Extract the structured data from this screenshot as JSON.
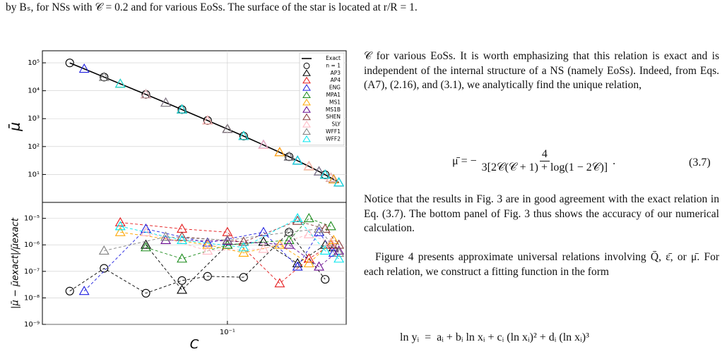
{
  "header": {
    "caption_tail": "by Bₛ, for NSs with 𝒞 = 0.2 and for various EoSs. The surface of the star is located at r/R = 1."
  },
  "chart_data": [
    {
      "type": "scatter",
      "ylabel": "μ̄",
      "xscale": "log",
      "yscale": "log",
      "grid": true,
      "legend": "upper right",
      "xlim": [
        0.0125,
        0.38
      ],
      "ylim": [
        1,
        270000
      ],
      "yticks": [
        {
          "value": 10,
          "label": "10¹"
        },
        {
          "value": 100,
          "label": "10²"
        },
        {
          "value": 1000,
          "label": "10³"
        },
        {
          "value": 10000,
          "label": "10⁴"
        },
        {
          "value": 100000,
          "label": "10⁵"
        }
      ],
      "series": [
        {
          "name": "Exact",
          "color": "#000000",
          "line": "solid",
          "x": [
            0.017,
            0.02,
            0.025,
            0.03,
            0.04,
            0.05,
            0.06,
            0.08,
            0.1,
            0.12,
            0.15,
            0.18,
            0.2,
            0.22,
            0.25,
            0.28,
            0.3,
            0.32,
            0.33,
            0.35
          ],
          "values": [
            99200,
            60700,
            30800,
            17700,
            7370,
            3720,
            2120,
            860,
            424,
            237,
            114,
            62.1,
            43.2,
            31.0,
            19.6,
            12.8,
            9.78,
            7.54,
            6.63,
            5.15
          ]
        },
        {
          "name": "n = 1",
          "color": "#000000",
          "marker": "o",
          "x": [
            0.017,
            0.025,
            0.04,
            0.06,
            0.08,
            0.12,
            0.2,
            0.3
          ],
          "values": [
            99200,
            30800,
            7370,
            2120,
            860,
            237,
            43.2,
            9.78
          ]
        },
        {
          "name": "AP3",
          "color": "#000000",
          "marker": "^",
          "x": [
            0.04,
            0.06,
            0.1,
            0.15,
            0.22,
            0.3,
            0.33
          ],
          "values": [
            7370,
            2120,
            424,
            114,
            31.0,
            9.78,
            6.63
          ]
        },
        {
          "name": "AP4",
          "color": "#e41a1c",
          "marker": "^",
          "x": [
            0.03,
            0.06,
            0.1,
            0.18,
            0.25,
            0.32
          ],
          "values": [
            17700,
            2120,
            424,
            62.1,
            19.6,
            7.54
          ]
        },
        {
          "name": "ENG",
          "color": "#1f1fe0",
          "marker": "^",
          "x": [
            0.02,
            0.04,
            0.08,
            0.15,
            0.22,
            0.28,
            0.33
          ],
          "values": [
            60700,
            7370,
            860,
            114,
            31.0,
            12.8,
            6.63
          ]
        },
        {
          "name": "MPA1",
          "color": "#1a8a1a",
          "marker": "^",
          "x": [
            0.04,
            0.06,
            0.1,
            0.2,
            0.25,
            0.32
          ],
          "values": [
            7370,
            2120,
            424,
            43.2,
            19.6,
            7.54
          ]
        },
        {
          "name": "MS1",
          "color": "#ffa500",
          "marker": "^",
          "x": [
            0.03,
            0.08,
            0.12,
            0.18,
            0.25,
            0.33
          ],
          "values": [
            17700,
            860,
            237,
            62.1,
            19.6,
            6.63
          ]
        },
        {
          "name": "MS1B",
          "color": "#6a0d91",
          "marker": "^",
          "x": [
            0.05,
            0.1,
            0.2,
            0.28,
            0.35
          ],
          "values": [
            3720,
            424,
            43.2,
            12.8,
            5.15
          ]
        },
        {
          "name": "SHEN",
          "color": "#8b3a3a",
          "marker": "^",
          "x": [
            0.06,
            0.12,
            0.22,
            0.3,
            0.35
          ],
          "values": [
            2120,
            237,
            31.0,
            9.78,
            5.15
          ]
        },
        {
          "name": "SLY",
          "color": "#ffb6c1",
          "marker": "^",
          "x": [
            0.04,
            0.08,
            0.15,
            0.25,
            0.32
          ],
          "values": [
            7370,
            860,
            114,
            19.6,
            7.54
          ]
        },
        {
          "name": "WFF1",
          "color": "#808080",
          "marker": "^",
          "x": [
            0.025,
            0.05,
            0.1,
            0.2,
            0.28,
            0.35
          ],
          "values": [
            30800,
            3720,
            424,
            43.2,
            12.8,
            5.15
          ]
        },
        {
          "name": "WFF2",
          "color": "#00e5ee",
          "marker": "^",
          "x": [
            0.03,
            0.06,
            0.12,
            0.22,
            0.3,
            0.35
          ],
          "values": [
            17700,
            2120,
            237,
            31.0,
            9.78,
            5.15
          ]
        }
      ]
    },
    {
      "type": "scatter",
      "ylabel": "|μ̄ − μ̄exact|/μ̄exact",
      "xlabel": "C",
      "xscale": "log",
      "yscale": "log",
      "grid": true,
      "xlim": [
        0.0125,
        0.38
      ],
      "ylim": [
        1e-09,
        4e-05
      ],
      "xticks": [
        {
          "value": 0.1,
          "label": "10⁻¹"
        }
      ],
      "yticks": [
        {
          "value": 1e-09,
          "label": "10⁻⁹"
        },
        {
          "value": 1e-08,
          "label": "10⁻⁸"
        },
        {
          "value": 1e-07,
          "label": "10⁻⁷"
        },
        {
          "value": 1e-06,
          "label": "10⁻⁶"
        },
        {
          "value": 1e-05,
          "label": "10⁻⁵"
        }
      ],
      "series": [
        {
          "color": "#000000",
          "marker": "o",
          "line": "dashed",
          "x": [
            0.017,
            0.025,
            0.04,
            0.06,
            0.08,
            0.12,
            0.2,
            0.3
          ],
          "values": [
            1.8e-08,
            1.3e-07,
            1.5e-08,
            4.5e-08,
            6.5e-08,
            6e-08,
            3e-06,
            5e-08
          ]
        },
        {
          "color": "#000000",
          "marker": "^",
          "line": "dashed",
          "x": [
            0.04,
            0.06,
            0.1,
            0.15,
            0.22,
            0.3,
            0.33
          ],
          "values": [
            1e-06,
            2e-08,
            1e-06,
            1.3e-06,
            2e-07,
            1e-06,
            8e-07
          ]
        },
        {
          "color": "#e41a1c",
          "marker": "^",
          "line": "dashed",
          "x": [
            0.03,
            0.06,
            0.1,
            0.18,
            0.25,
            0.32
          ],
          "values": [
            7e-06,
            4e-06,
            3e-06,
            3.5e-08,
            3e-07,
            1e-06
          ]
        },
        {
          "color": "#1f1fe0",
          "marker": "^",
          "line": "dashed",
          "x": [
            0.02,
            0.04,
            0.08,
            0.15,
            0.22,
            0.28,
            0.33
          ],
          "values": [
            1.8e-08,
            4e-06,
            1.2e-06,
            3e-06,
            1.5e-07,
            3e-06,
            5e-07
          ]
        },
        {
          "color": "#1a8a1a",
          "marker": "^",
          "line": "dashed",
          "x": [
            0.04,
            0.06,
            0.1,
            0.2,
            0.25,
            0.32
          ],
          "values": [
            8e-07,
            3e-07,
            1e-06,
            1.5e-06,
            1e-05,
            5e-06
          ]
        },
        {
          "color": "#ffa500",
          "marker": "^",
          "line": "dashed",
          "x": [
            0.03,
            0.08,
            0.12,
            0.18,
            0.25,
            0.33
          ],
          "values": [
            3e-06,
            1e-06,
            5e-07,
            1e-06,
            2e-07,
            1.5e-06
          ]
        },
        {
          "color": "#6a0d91",
          "marker": "^",
          "line": "dashed",
          "x": [
            0.05,
            0.1,
            0.2,
            0.28,
            0.35
          ],
          "values": [
            1.5e-06,
            1.4e-06,
            1e-06,
            1.5e-07,
            6e-07
          ]
        },
        {
          "color": "#8b3a3a",
          "marker": "^",
          "line": "dashed",
          "x": [
            0.06,
            0.12,
            0.22,
            0.3,
            0.35
          ],
          "values": [
            2e-06,
            1.3e-06,
            8e-06,
            4e-06,
            1e-06
          ]
        },
        {
          "color": "#ffb6c1",
          "marker": "^",
          "line": "dashed",
          "x": [
            0.04,
            0.08,
            0.15,
            0.25,
            0.32
          ],
          "values": [
            3e-06,
            6e-07,
            7e-07,
            2.5e-06,
            1.2e-06
          ]
        },
        {
          "color": "#808080",
          "marker": "^",
          "line": "dashed",
          "x": [
            0.025,
            0.05,
            0.1,
            0.2,
            0.28,
            0.35
          ],
          "values": [
            6e-07,
            2e-06,
            1.5e-06,
            3e-06,
            4e-06,
            5e-07
          ]
        },
        {
          "color": "#00e5ee",
          "marker": "^",
          "line": "dashed",
          "x": [
            0.03,
            0.06,
            0.12,
            0.22,
            0.3,
            0.35
          ],
          "values": [
            5e-06,
            1.5e-06,
            8e-07,
            1e-05,
            6e-07,
            3e-07
          ]
        }
      ]
    }
  ],
  "body": {
    "paragraph_1": "𝒞 for various EoSs. It is worth emphasizing that this relation is exact and is independent of the internal structure of a NS (namely EoSs). Indeed, from Eqs. (A7), (2.16), and (3.1), we analytically find the unique relation,",
    "equation_1": {
      "lhs": "μ̄ = −",
      "numerator": "4",
      "denominator": "3[2𝒞(𝒞 + 1) + log(1 − 2𝒞)]",
      "tail": ".",
      "number": "(3.7)"
    },
    "paragraph_2": "Notice that the results in Fig. 3 are in good agreement with the exact relation in Eq. (3.7). The bottom panel of Fig. 3 thus shows the accuracy of our numerical calculation.",
    "paragraph_3": "Figure 4 presents approximate universal relations involving Q̄, ε̄, or μ̄. For each relation, we construct a fitting function in the form",
    "equation_2": "ln yᵢ  =  aᵢ + bᵢ ln xᵢ + cᵢ (ln xᵢ)² + dᵢ (ln xᵢ)³"
  }
}
